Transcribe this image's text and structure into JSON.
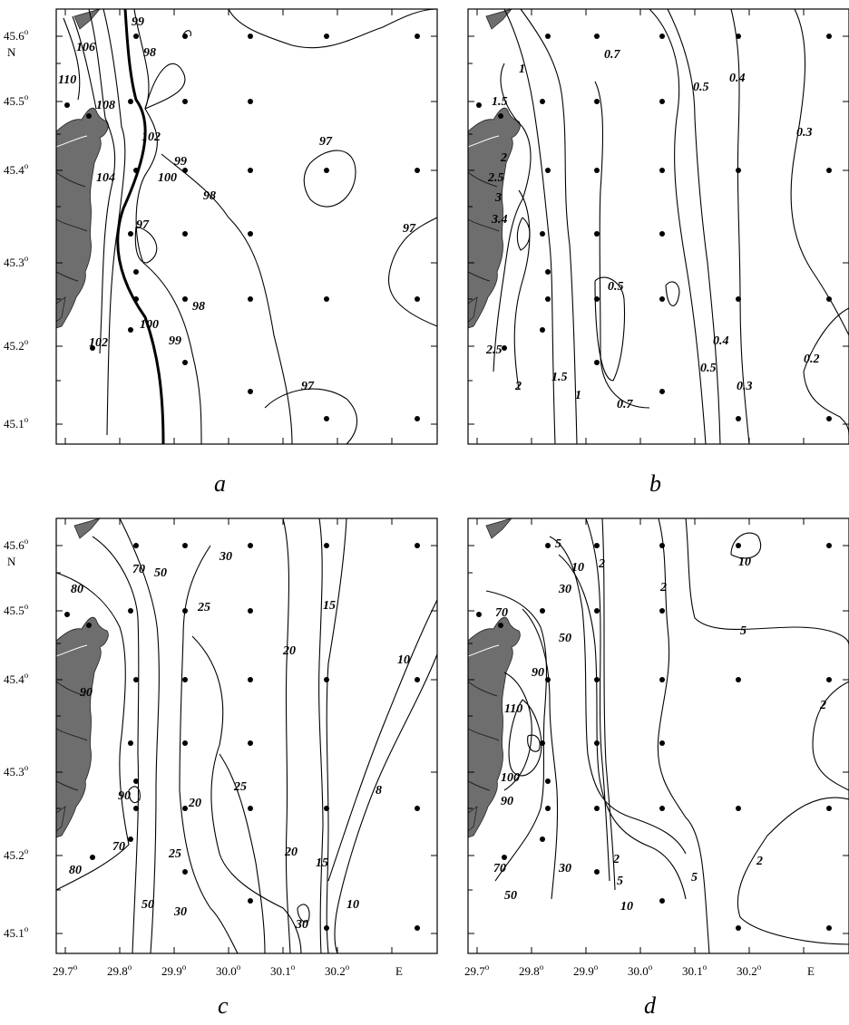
{
  "panels": {
    "a": {
      "letter": "a",
      "contour_labels": [
        "99",
        "106",
        "98",
        "110",
        "108",
        "102",
        "100",
        "104",
        "99",
        "97",
        "97",
        "98",
        "97",
        "100",
        "102",
        "99",
        "98",
        "97"
      ]
    },
    "b": {
      "letter": "b",
      "contour_labels": [
        "1",
        "0.7",
        "0.5",
        "0.4",
        "1.5",
        "0.3",
        "2",
        "2.5",
        "3",
        "3.4",
        "0.5",
        "2.5",
        "0.4",
        "0.5",
        "0.2",
        "2",
        "1.5",
        "1",
        "0.3",
        "0.7"
      ]
    },
    "c": {
      "letter": "c",
      "contour_labels": [
        "70",
        "30",
        "80",
        "50",
        "25",
        "15",
        "20",
        "90",
        "10",
        "90",
        "25",
        "20",
        "8",
        "80",
        "70",
        "25",
        "20",
        "15",
        "50",
        "30",
        "10",
        "30"
      ]
    },
    "d": {
      "letter": "d",
      "contour_labels": [
        "5",
        "10",
        "2",
        "10",
        "30",
        "2",
        "70",
        "50",
        "5",
        "90",
        "110",
        "100",
        "90",
        "2",
        "70",
        "2",
        "50",
        "30",
        "5",
        "10",
        "5",
        "2"
      ]
    }
  },
  "axes": {
    "lat_labels": [
      "45.6",
      "45.5",
      "45.4",
      "45.3",
      "45.2",
      "45.1"
    ],
    "lat_unit": "N",
    "lon_labels": [
      "29.7",
      "29.8",
      "29.9",
      "30.0",
      "30.1",
      "30.2"
    ],
    "lon_unit": "E",
    "degree": "o"
  }
}
